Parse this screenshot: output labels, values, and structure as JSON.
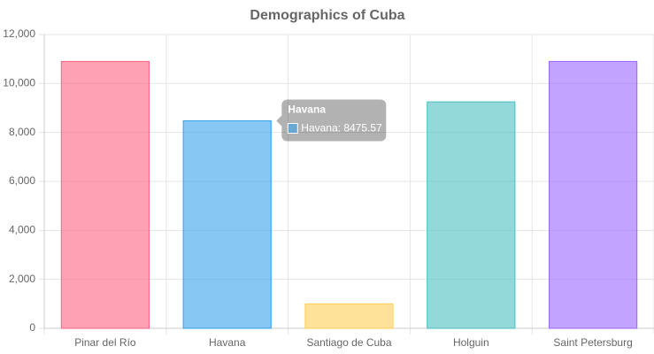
{
  "chart_data": {
    "type": "bar",
    "title": "Demographics of Cuba",
    "categories": [
      "Pinar del Río",
      "Havana",
      "Santiago de Cuba",
      "Holguin",
      "Saint Petersburg"
    ],
    "values": [
      10900,
      8475.57,
      1000,
      9250,
      10900
    ],
    "colors": [
      "#ff6384",
      "#36a2eb",
      "#ffce56",
      "#4bc0c0",
      "#9966ff"
    ],
    "ylim": [
      0,
      12000
    ],
    "yticks": [
      0,
      {
        "value": 2000,
        "label": "2,000"
      },
      {
        "value": 4000,
        "label": "4,000"
      },
      {
        "value": 6000,
        "label": "6,000"
      },
      {
        "value": 8000,
        "label": "8,000"
      },
      {
        "value": 10000,
        "label": "10,000"
      },
      {
        "value": 12000,
        "label": "12,000"
      }
    ],
    "grid": true,
    "tooltip": {
      "category": 1,
      "title": "Havana",
      "body": "Havana: 8475.57"
    }
  }
}
